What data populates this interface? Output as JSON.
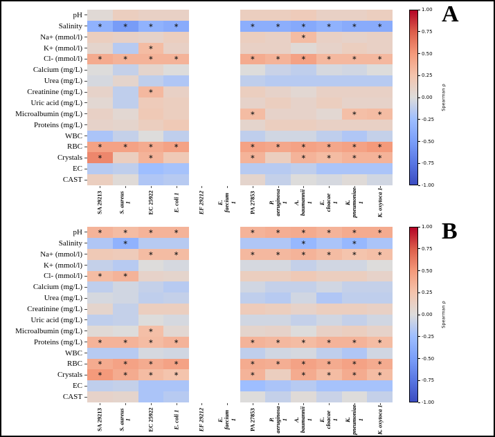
{
  "chart_data": {
    "type": "heatmap",
    "colormap": "coolwarm",
    "marker_glyph": "∗",
    "rows": [
      "pH",
      "Salinity",
      "Na+ (mmol/l)",
      "K+ (mmol/l)",
      "Cl- (mmol/l)",
      "Calcium (mg/L)",
      "Urea (mg/L)",
      "Creatinine (mg/L)",
      "Uric acid (mg/L)",
      "Microalbumin (mg/L)",
      "Proteins (mg/L)",
      "WBC",
      "RBC",
      "Crystals",
      "EC",
      "CAST"
    ],
    "columns": [
      {
        "text": "SA 29213",
        "italic": false
      },
      {
        "text": "S. aureus\n1",
        "italic": true
      },
      {
        "text": "EC 25922",
        "italic": false
      },
      {
        "text": "E. coli 1",
        "italic": true
      },
      {
        "text": "EF 29212",
        "italic": true
      },
      {
        "text": "E.\nfaecium\n1",
        "italic": true
      },
      {
        "text": "PA 27853",
        "italic": false
      },
      {
        "text": "P.\naeruginosa\n1",
        "italic": true
      },
      {
        "text": "A.\nbaumannii\n1",
        "italic": true
      },
      {
        "text": "E.\ncloacae\n1",
        "italic": true
      },
      {
        "text": "K.\npneumoniae\n1",
        "italic": true
      },
      {
        "text": "K. oxytoca 1",
        "italic": true
      }
    ],
    "colorbar": {
      "label": "Spearman ρ",
      "ticks": [
        "1.00",
        "0.75",
        "0.50",
        "0.25",
        "0.00",
        "-0.25",
        "-0.50",
        "-0.75",
        "-1.00"
      ],
      "vmin": -1,
      "vmax": 1
    },
    "panels": [
      {
        "letter": "A",
        "values": [
          [
            0.03,
            0.15,
            0.12,
            0.12,
            null,
            null,
            0.15,
            0.15,
            0.18,
            0.12,
            0.12,
            0.15
          ],
          [
            -0.35,
            -0.52,
            -0.35,
            -0.4,
            null,
            null,
            -0.38,
            -0.38,
            -0.42,
            -0.35,
            -0.4,
            -0.4
          ],
          [
            0.15,
            0.12,
            0.1,
            0.15,
            null,
            null,
            0.15,
            0.12,
            0.3,
            0.12,
            0.1,
            0.12
          ],
          [
            0.08,
            -0.15,
            0.3,
            0.12,
            null,
            null,
            0.12,
            0.12,
            0.03,
            0.1,
            0.15,
            0.12
          ],
          [
            0.4,
            0.35,
            0.35,
            0.35,
            null,
            null,
            0.4,
            0.35,
            0.45,
            0.32,
            0.32,
            0.32
          ],
          [
            0.0,
            -0.1,
            0.08,
            0.0,
            null,
            null,
            0.0,
            -0.08,
            -0.12,
            -0.03,
            -0.05,
            0.0
          ],
          [
            -0.03,
            0.08,
            -0.12,
            -0.18,
            null,
            null,
            -0.12,
            -0.15,
            -0.15,
            -0.15,
            -0.15,
            -0.15
          ],
          [
            0.1,
            -0.12,
            0.32,
            0.12,
            null,
            null,
            0.15,
            0.1,
            0.05,
            0.12,
            0.12,
            0.12
          ],
          [
            0.05,
            -0.12,
            0.18,
            0.15,
            null,
            null,
            0.1,
            0.15,
            0.1,
            0.15,
            0.1,
            0.1
          ],
          [
            0.12,
            0.05,
            0.2,
            0.15,
            null,
            null,
            0.3,
            0.1,
            0.1,
            0.05,
            0.28,
            0.3
          ],
          [
            0.1,
            0.08,
            0.15,
            0.2,
            null,
            null,
            0.08,
            0.15,
            0.15,
            0.12,
            0.12,
            0.12
          ],
          [
            -0.2,
            -0.1,
            0.0,
            -0.12,
            null,
            null,
            -0.12,
            -0.05,
            -0.05,
            -0.12,
            -0.18,
            -0.1
          ],
          [
            0.45,
            0.45,
            0.4,
            0.45,
            null,
            null,
            0.45,
            0.42,
            0.45,
            0.42,
            0.45,
            0.5
          ],
          [
            0.58,
            0.15,
            0.35,
            0.2,
            null,
            null,
            0.35,
            0.15,
            0.35,
            0.3,
            0.35,
            0.35
          ],
          [
            -0.15,
            -0.12,
            -0.25,
            -0.22,
            null,
            null,
            -0.15,
            -0.15,
            -0.12,
            -0.2,
            -0.2,
            -0.2
          ],
          [
            0.15,
            0.02,
            -0.18,
            -0.15,
            null,
            null,
            0.08,
            -0.1,
            0.0,
            -0.03,
            0.02,
            -0.05
          ]
        ],
        "sig": [
          "............",
          "****..******",
          "........*...",
          "..*.........",
          "****..******",
          "............",
          "............",
          "..*.........",
          "............",
          "......*...**",
          "............",
          "............",
          "****..******",
          "*.*...*.****",
          "............",
          "............"
        ]
      },
      {
        "letter": "B",
        "values": [
          [
            0.35,
            0.3,
            0.35,
            0.35,
            null,
            null,
            0.35,
            0.38,
            0.4,
            0.35,
            0.4,
            0.4
          ],
          [
            -0.18,
            -0.35,
            -0.15,
            -0.15,
            null,
            null,
            -0.18,
            -0.18,
            -0.3,
            -0.2,
            -0.3,
            -0.2
          ],
          [
            0.2,
            0.18,
            0.3,
            0.3,
            null,
            null,
            0.32,
            0.32,
            0.35,
            0.3,
            0.25,
            0.28
          ],
          [
            -0.1,
            -0.15,
            0.0,
            -0.03,
            null,
            null,
            -0.03,
            -0.03,
            -0.1,
            -0.05,
            -0.05,
            0.0
          ],
          [
            0.3,
            0.35,
            0.1,
            0.08,
            null,
            null,
            0.15,
            0.15,
            0.2,
            0.15,
            0.15,
            0.1
          ],
          [
            -0.12,
            -0.05,
            -0.1,
            -0.15,
            null,
            null,
            -0.05,
            -0.1,
            -0.1,
            -0.05,
            -0.1,
            -0.1
          ],
          [
            -0.03,
            -0.05,
            -0.12,
            -0.1,
            null,
            null,
            -0.12,
            -0.15,
            -0.05,
            -0.18,
            -0.12,
            -0.12
          ],
          [
            0.08,
            -0.1,
            0.15,
            0.15,
            null,
            null,
            0.18,
            0.15,
            0.1,
            0.15,
            0.15,
            0.12
          ],
          [
            -0.12,
            -0.1,
            0.0,
            -0.03,
            null,
            null,
            -0.05,
            -0.05,
            -0.1,
            -0.05,
            -0.1,
            -0.05
          ],
          [
            0.03,
            0.0,
            0.28,
            0.05,
            null,
            null,
            0.08,
            0.1,
            0.0,
            0.12,
            0.15,
            0.1
          ],
          [
            0.35,
            0.35,
            0.3,
            0.35,
            null,
            null,
            0.35,
            0.32,
            0.3,
            0.35,
            0.35,
            0.3
          ],
          [
            -0.15,
            -0.15,
            -0.03,
            -0.05,
            null,
            null,
            -0.12,
            -0.05,
            -0.03,
            -0.12,
            -0.18,
            -0.05
          ],
          [
            0.4,
            0.45,
            0.4,
            0.45,
            null,
            null,
            0.4,
            0.38,
            0.45,
            0.4,
            0.45,
            0.4
          ],
          [
            0.5,
            0.4,
            0.3,
            0.25,
            null,
            null,
            0.35,
            0.15,
            0.4,
            0.3,
            0.4,
            0.3
          ],
          [
            -0.12,
            -0.1,
            -0.2,
            -0.2,
            null,
            null,
            -0.25,
            -0.2,
            -0.15,
            -0.22,
            -0.22,
            -0.22
          ],
          [
            0.1,
            0.08,
            -0.2,
            -0.15,
            null,
            null,
            0.0,
            -0.1,
            0.02,
            -0.08,
            0.0,
            -0.1
          ]
        ],
        "sig": [
          "****..******",
          ".*......*.*.",
          "..**..******",
          "............",
          "**..........",
          "............",
          "............",
          "............",
          "............",
          "..*.........",
          "****..******",
          "............",
          "****..******",
          "****..*.****",
          "............",
          "............"
        ]
      }
    ]
  }
}
